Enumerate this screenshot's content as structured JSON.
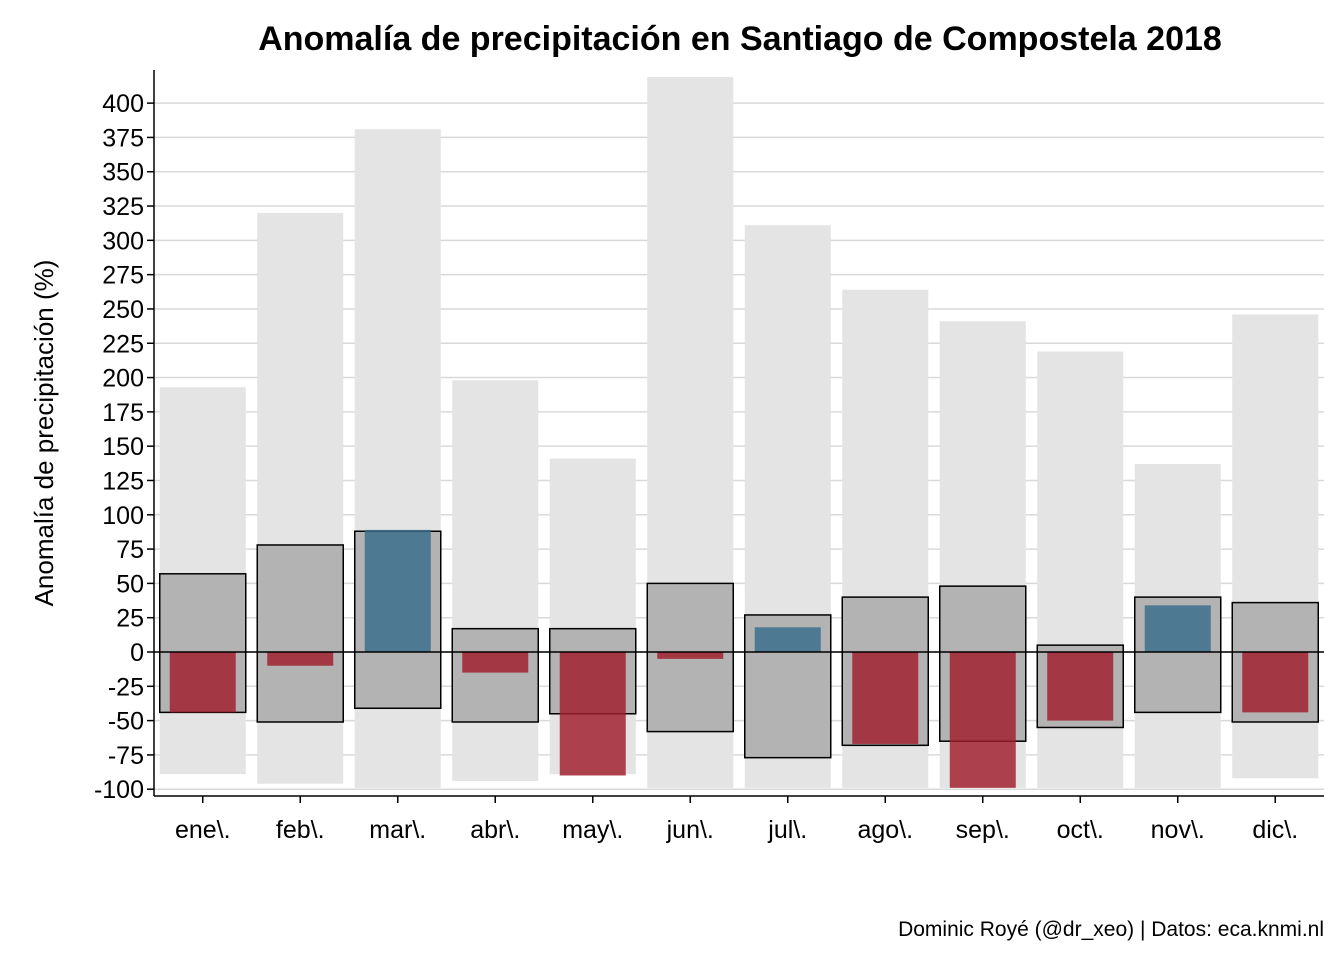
{
  "chart_data": {
    "type": "bar",
    "title": "Anomalía de precipitación en Santiago de Compostela 2018",
    "xlabel": "",
    "ylabel": "Anomalía de precipitación (%)",
    "caption": "Dominic Royé (@dr_xeo) | Datos: eca.knmi.nl",
    "ylim": [
      -103,
      426
    ],
    "yticks": [
      -100,
      -75,
      -50,
      -25,
      0,
      25,
      50,
      75,
      100,
      125,
      150,
      175,
      200,
      225,
      250,
      275,
      300,
      325,
      350,
      375,
      400
    ],
    "grid": "horizontal",
    "categories": [
      "ene\\.",
      "feb\\.",
      "mar\\.",
      "abr\\.",
      "may\\.",
      "jun\\.",
      "jul\\.",
      "ago\\.",
      "sep\\.",
      "oct\\.",
      "nov\\.",
      "dic\\."
    ],
    "range_min_max": [
      [
        -89,
        193
      ],
      [
        -96,
        320
      ],
      [
        -99,
        381
      ],
      [
        -94,
        198
      ],
      [
        -89,
        141
      ],
      [
        -99,
        419
      ],
      [
        -99,
        311
      ],
      [
        -99,
        264
      ],
      [
        -99,
        241
      ],
      [
        -99,
        219
      ],
      [
        -99,
        137
      ],
      [
        -92,
        246
      ]
    ],
    "range_interquartile": [
      [
        -44,
        57
      ],
      [
        -51,
        78
      ],
      [
        -41,
        88
      ],
      [
        -51,
        17
      ],
      [
        -45,
        17
      ],
      [
        -58,
        50
      ],
      [
        -77,
        27
      ],
      [
        -68,
        40
      ],
      [
        -65,
        48
      ],
      [
        -55,
        5
      ],
      [
        -44,
        40
      ],
      [
        -51,
        36
      ]
    ],
    "anomaly_2018": [
      -44,
      -10,
      89,
      -15,
      -90,
      -5,
      18,
      -67,
      -99,
      -50,
      34,
      -44
    ],
    "colors": {
      "range_min_max": "#e4e4e4",
      "range_interquartile": "#b3b3b3",
      "positive": "#376c8c",
      "negative": "#a01c2c",
      "grid": "#d9d9d9",
      "zero_line": "#000000"
    }
  }
}
